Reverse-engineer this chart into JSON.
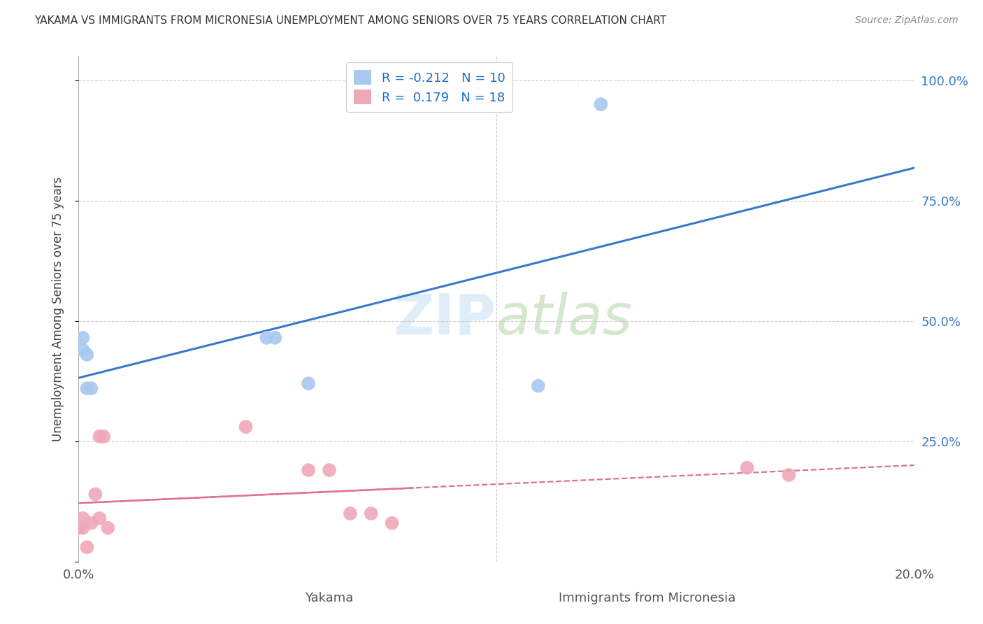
{
  "title": "YAKAMA VS IMMIGRANTS FROM MICRONESIA UNEMPLOYMENT AMONG SENIORS OVER 75 YEARS CORRELATION CHART",
  "source": "Source: ZipAtlas.com",
  "ylabel": "Unemployment Among Seniors over 75 years",
  "yakama_R": -0.212,
  "yakama_N": 10,
  "micronesia_R": 0.179,
  "micronesia_N": 18,
  "yakama_color": "#a8c8f0",
  "micronesia_color": "#f0a8b8",
  "yakama_line_color": "#3a78c9",
  "micronesia_line_color": "#e07090",
  "background_color": "#ffffff",
  "xlim": [
    0.0,
    0.2
  ],
  "ylim": [
    0.0,
    1.05
  ],
  "yakama_x": [
    0.001,
    0.001,
    0.002,
    0.002,
    0.003,
    0.045,
    0.047,
    0.055,
    0.11,
    0.125
  ],
  "yakama_y": [
    0.465,
    0.44,
    0.43,
    0.36,
    0.36,
    0.465,
    0.465,
    0.37,
    0.365,
    0.95
  ],
  "micronesia_x": [
    0.0,
    0.001,
    0.001,
    0.002,
    0.003,
    0.004,
    0.005,
    0.005,
    0.006,
    0.007,
    0.04,
    0.055,
    0.06,
    0.065,
    0.07,
    0.075,
    0.16,
    0.17
  ],
  "micronesia_y": [
    0.07,
    0.07,
    0.09,
    0.03,
    0.08,
    0.14,
    0.09,
    0.26,
    0.26,
    0.07,
    0.28,
    0.19,
    0.19,
    0.1,
    0.1,
    0.08,
    0.195,
    0.18
  ]
}
